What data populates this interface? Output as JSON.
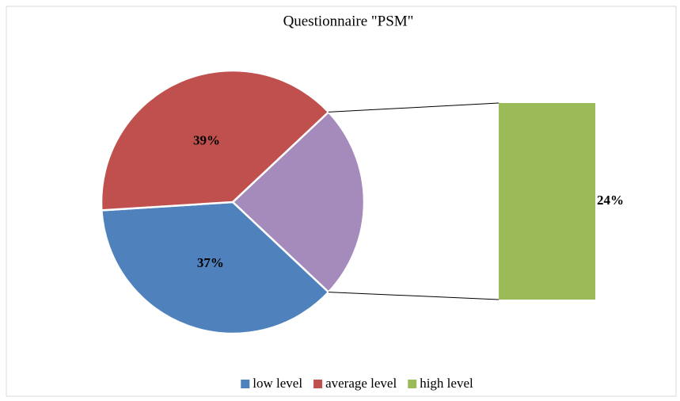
{
  "chart_data": {
    "type": "bar-of-pie",
    "title": "Questionnaire \"PSM\"",
    "categories": [
      "low level",
      "average level",
      "high level"
    ],
    "values": [
      37,
      39,
      24
    ],
    "value_labels": [
      "37%",
      "39%",
      "24%"
    ],
    "colors": [
      "#4f81bd",
      "#c0504d",
      "#9bbb59"
    ],
    "split_color": "#a48bbc",
    "legend": "bottom"
  }
}
